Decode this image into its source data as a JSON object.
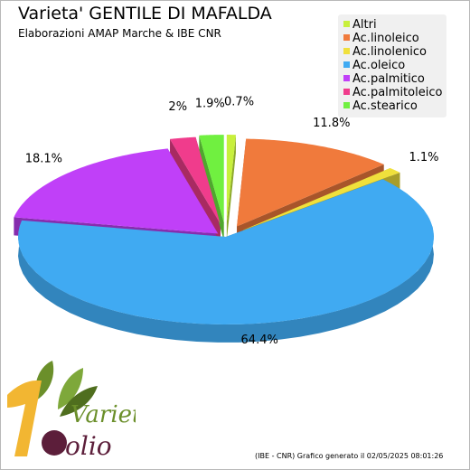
{
  "title": "Varieta' GENTILE DI MAFALDA",
  "subtitle": "Elaborazioni AMAP Marche & IBE CNR",
  "footer": "(IBE - CNR) Grafico generato il 02/05/2025 08:01:26",
  "logo": {
    "text_top": "Varietà",
    "text_bottom": "olio"
  },
  "chart_data": {
    "type": "pie",
    "style": "3d-exploded",
    "legend_placement": "top-right",
    "slices": [
      {
        "name": "Altri",
        "value": 0.7,
        "label": "0.7%",
        "color": "#c8f03c"
      },
      {
        "name": "Ac.linoleico",
        "value": 11.8,
        "label": "11.8%",
        "color": "#f07a3c"
      },
      {
        "name": "Ac.linolenico",
        "value": 1.1,
        "label": "1.1%",
        "color": "#f0e03c"
      },
      {
        "name": "Ac.oleico",
        "value": 64.4,
        "label": "64.4%",
        "color": "#40aaf2"
      },
      {
        "name": "Ac.palmitico",
        "value": 18.1,
        "label": "18.1%",
        "color": "#c040f8"
      },
      {
        "name": "Ac.palmitoleico",
        "value": 2,
        "label": "2%",
        "color": "#f03c8c"
      },
      {
        "name": "Ac.stearico",
        "value": 1.9,
        "label": "1.9%",
        "color": "#70f040"
      }
    ]
  }
}
